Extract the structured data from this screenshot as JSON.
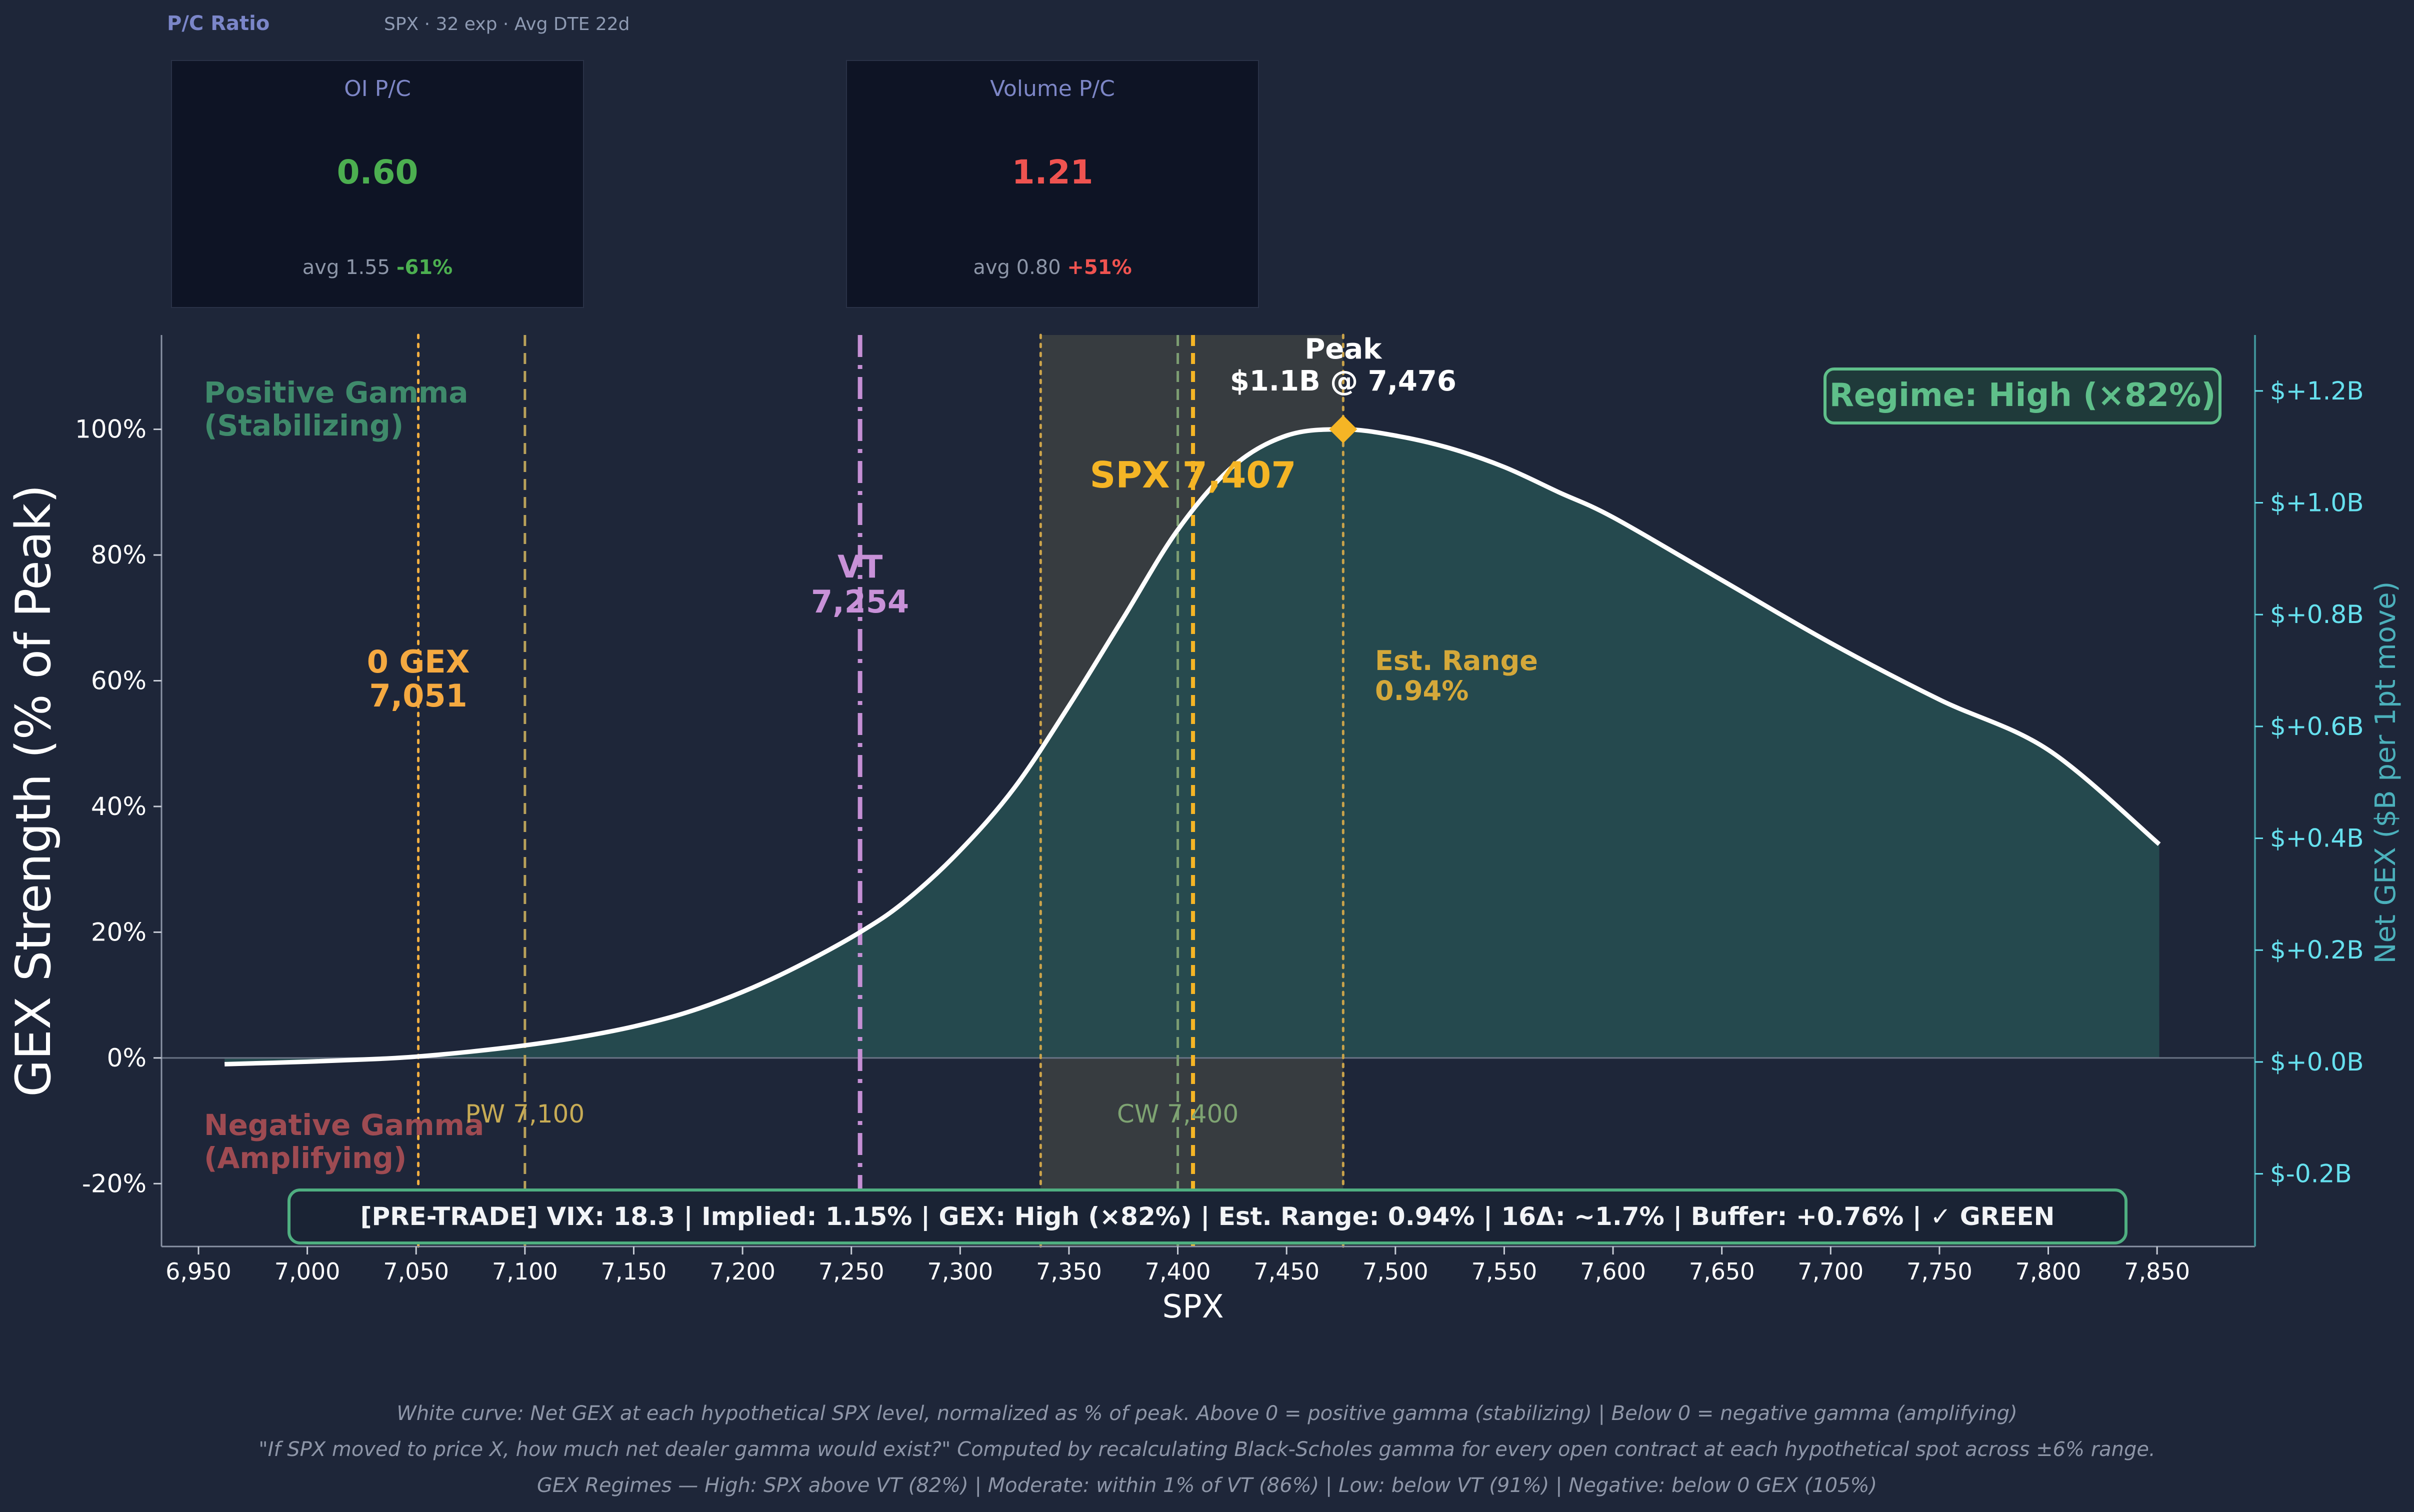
{
  "pc_ratio": {
    "title": "P/C Ratio",
    "subtitle": "SPX · 32 exp · Avg DTE 22d",
    "cards": [
      {
        "label": "OI P/C",
        "value": "0.60",
        "value_color": "#4caf50",
        "avg_text": "avg 1.55",
        "change": "-61%",
        "change_color": "#4caf50"
      },
      {
        "label": "Volume P/C",
        "value": "1.21",
        "value_color": "#ef5350",
        "avg_text": "avg 0.80",
        "change": "+51%",
        "change_color": "#ef5350"
      }
    ]
  },
  "chart_data": {
    "type": "area",
    "xlabel": "SPX",
    "ylabel": "GEX Strength (% of Peak)",
    "y2label": "Net GEX ($B per 1pt move)",
    "xlim": [
      6933,
      7895
    ],
    "ylim": [
      -30,
      115
    ],
    "y2lim": [
      -0.33,
      1.3
    ],
    "x_ticks": [
      6950,
      7000,
      7050,
      7100,
      7150,
      7200,
      7250,
      7300,
      7350,
      7400,
      7450,
      7500,
      7550,
      7600,
      7650,
      7700,
      7750,
      7800,
      7850
    ],
    "x_tick_labels": [
      "6,950",
      "7,000",
      "7,050",
      "7,100",
      "7,150",
      "7,200",
      "7,250",
      "7,300",
      "7,350",
      "7,400",
      "7,450",
      "7,500",
      "7,550",
      "7,600",
      "7,650",
      "7,700",
      "7,750",
      "7,800",
      "7,850"
    ],
    "y_ticks": [
      -20,
      0,
      20,
      40,
      60,
      80,
      100
    ],
    "y_tick_labels": [
      "-20%",
      "0%",
      "20%",
      "40%",
      "60%",
      "80%",
      "100%"
    ],
    "y2_ticks": [
      -0.2,
      0,
      0.2,
      0.4,
      0.6,
      0.8,
      1.0,
      1.2
    ],
    "y2_tick_labels": [
      "$-0.2B",
      "$+0.0B",
      "$+0.2B",
      "$+0.4B",
      "$+0.6B",
      "$+0.8B",
      "$+1.0B",
      "$+1.2B"
    ],
    "series": [
      {
        "x": [
          6962,
          7000,
          7030,
          7050,
          7075,
          7100,
          7125,
          7150,
          7175,
          7200,
          7225,
          7254,
          7275,
          7300,
          7325,
          7350,
          7375,
          7400,
          7425,
          7450,
          7476,
          7500,
          7525,
          7550,
          7575,
          7600,
          7650,
          7700,
          7750,
          7800,
          7851
        ],
        "y": [
          -1,
          -0.6,
          -0.2,
          0.2,
          1.0,
          2.0,
          3.3,
          5.0,
          7.3,
          10.5,
          14.5,
          20,
          25,
          33,
          43,
          56,
          70,
          84,
          94,
          99,
          100,
          99,
          97,
          94,
          90,
          86,
          76,
          66,
          57,
          49,
          34
        ]
      }
    ],
    "regions": [
      {
        "label": "Est. Range",
        "x_start": 7337,
        "x_end": 7476
      }
    ],
    "vlines": [
      {
        "x": 7051,
        "style": "dotted",
        "color": "#f5b041",
        "label_lines": [
          "0 GEX",
          "7,051"
        ]
      },
      {
        "x": 7100,
        "style": "dashed",
        "color": "#b9a15a",
        "label_lines": [
          "PW 7,100"
        ]
      },
      {
        "x": 7254,
        "style": "dashdot",
        "color": "#c58fd4",
        "label_lines": [
          "VT",
          "7,254"
        ]
      },
      {
        "x": 7337,
        "style": "dotted",
        "color": "#c9a24a"
      },
      {
        "x": 7400,
        "style": "dashed",
        "color": "#7c9d72",
        "label_lines": [
          "CW 7,400"
        ]
      },
      {
        "x": 7407,
        "style": "dashed",
        "color": "#f5b525",
        "label_lines": [
          "SPX 7,407"
        ]
      },
      {
        "x": 7476,
        "style": "dotted",
        "color": "#c9a24a"
      }
    ],
    "peak": {
      "x": 7476,
      "y": 100,
      "label_lines": [
        "Peak",
        "$1.1B @ 7,476"
      ]
    },
    "annotations": {
      "positive_gamma": [
        "Positive Gamma",
        "(Stabilizing)"
      ],
      "negative_gamma": [
        "Negative Gamma",
        "(Amplifying)"
      ],
      "est_range": [
        "Est. Range",
        "0.94%"
      ],
      "regime": "Regime: High (×82%)",
      "pretrade": "[PRE-TRADE]  VIX: 18.3  |  Implied: 1.15%  |  GEX: High (×82%)  |  Est. Range: 0.94%  |  16Δ: ~1.7%  |  Buffer: +0.76%  |  ✓ GREEN"
    },
    "colors": {
      "fill": "#264b4f",
      "curve": "#ffffff",
      "text": "#ffffff",
      "y2": "#66e0ee",
      "y2label": "#4bb0bb",
      "positive": "#3f8a6b",
      "negative": "#9e4b52",
      "est_range": "#d4a83a",
      "regime": "#5fbf8a"
    }
  },
  "footer": {
    "lines": [
      "White curve: Net GEX at each hypothetical SPX level, normalized as % of peak.  Above 0 = positive gamma (stabilizing)  |  Below 0 = negative gamma (amplifying)",
      "\"If SPX moved to price X, how much net dealer gamma would exist?\" Computed by recalculating Black-Scholes gamma for every open contract at each hypothetical spot across ±6% range.",
      "GEX Regimes — High: SPX above VT (82%)  |  Moderate: within 1% of VT (86%)  |  Low: below VT (91%)  |  Negative: below 0 GEX (105%)"
    ]
  }
}
